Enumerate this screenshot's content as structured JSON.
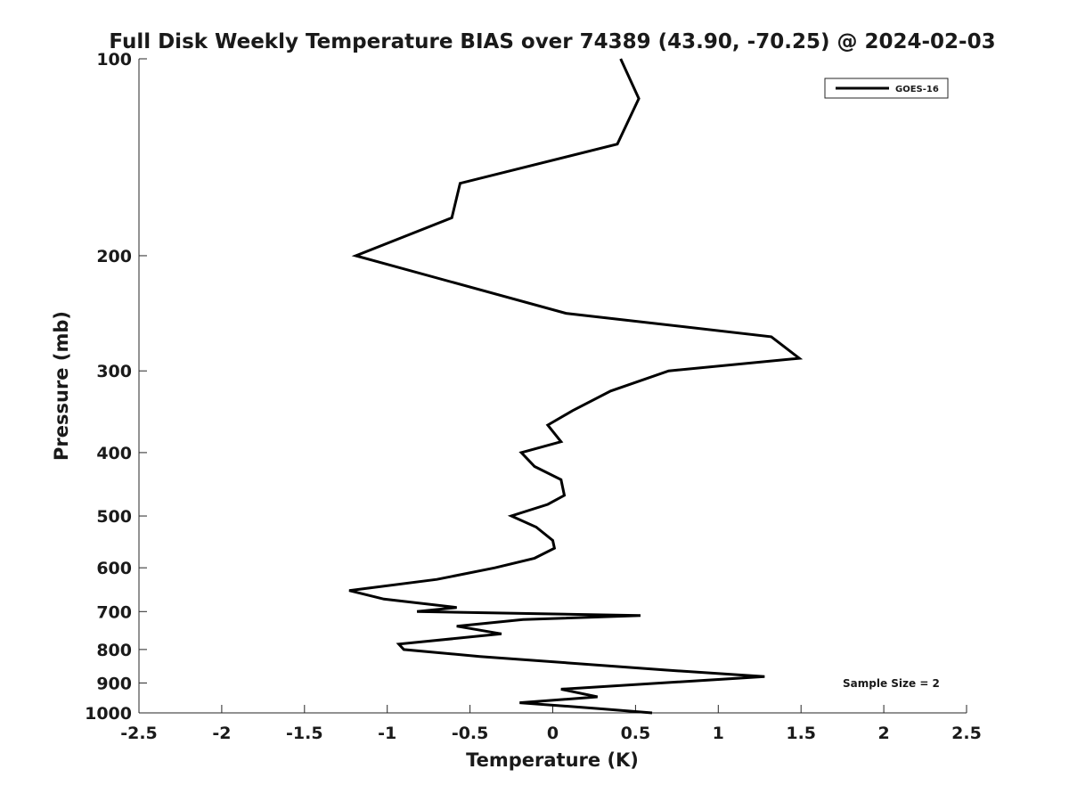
{
  "chart_data": {
    "type": "line",
    "title": "Full Disk Weekly Temperature BIAS over 74389 (43.90, -70.25) @ 2024-02-03",
    "xlabel": "Temperature (K)",
    "ylabel": "Pressure (mb)",
    "xlim": [
      -2.5,
      2.5
    ],
    "ylim": [
      1000,
      100
    ],
    "y_scale": "log",
    "y_reversed": true,
    "grid": false,
    "x_ticks": [
      "-2.5",
      "-2",
      "-1.5",
      "-1",
      "-0.5",
      "0",
      "0.5",
      "1",
      "1.5",
      "2",
      "2.5"
    ],
    "y_ticks": [
      "100",
      "200",
      "300",
      "400",
      "500",
      "600",
      "700",
      "800",
      "900",
      "1000"
    ],
    "legend": {
      "placement": "top-right",
      "entries": [
        "GOES-16"
      ]
    },
    "annotation": "Sample Size = 2",
    "series": [
      {
        "name": "GOES-16",
        "color": "#000000",
        "points": [
          [
            0.41,
            100
          ],
          [
            0.52,
            115
          ],
          [
            0.39,
            135
          ],
          [
            -0.56,
            155
          ],
          [
            -0.61,
            175
          ],
          [
            -1.19,
            200
          ],
          [
            0.08,
            245
          ],
          [
            1.32,
            266
          ],
          [
            1.49,
            287
          ],
          [
            0.7,
            300
          ],
          [
            0.35,
            322
          ],
          [
            0.12,
            345
          ],
          [
            -0.03,
            363
          ],
          [
            0.05,
            385
          ],
          [
            -0.19,
            400
          ],
          [
            -0.11,
            420
          ],
          [
            0.05,
            440
          ],
          [
            0.07,
            465
          ],
          [
            -0.03,
            480
          ],
          [
            -0.25,
            500
          ],
          [
            -0.1,
            520
          ],
          [
            0.0,
            545
          ],
          [
            0.01,
            560
          ],
          [
            -0.11,
            580
          ],
          [
            -0.35,
            600
          ],
          [
            -0.7,
            625
          ],
          [
            -1.23,
            650
          ],
          [
            -1.02,
            670
          ],
          [
            -0.58,
            690
          ],
          [
            -0.82,
            700
          ],
          [
            0.53,
            710
          ],
          [
            -0.18,
            720
          ],
          [
            -0.58,
            737
          ],
          [
            -0.31,
            757
          ],
          [
            -0.93,
            785
          ],
          [
            -0.9,
            800
          ],
          [
            -0.44,
            820
          ],
          [
            0.68,
            860
          ],
          [
            1.28,
            880
          ],
          [
            0.05,
            920
          ],
          [
            0.27,
            945
          ],
          [
            -0.2,
            965
          ],
          [
            0.28,
            985
          ],
          [
            0.6,
            1000
          ]
        ]
      }
    ]
  }
}
